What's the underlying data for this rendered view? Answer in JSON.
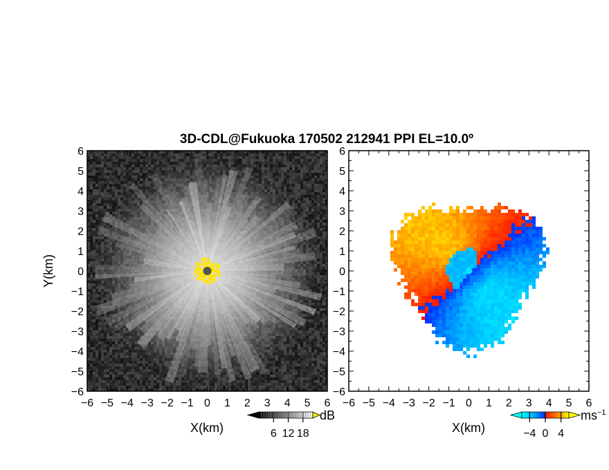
{
  "title": "3D-CDL@Fukuoka 170502 212941 PPI EL=10.0º",
  "chart_data": [
    {
      "type": "heatmap",
      "panel": "reflectivity",
      "xlabel": "X(km)",
      "ylabel": "Y(km)",
      "xlim": [
        -6,
        6
      ],
      "ylim": [
        -6,
        6
      ],
      "xticks": [
        "−6",
        "−5",
        "−4",
        "−3",
        "−2",
        "−1",
        "0",
        "1",
        "2",
        "3",
        "4",
        "5",
        "6"
      ],
      "yticks": [
        "−6",
        "−5",
        "−4",
        "−3",
        "−2",
        "−1",
        "0",
        "1",
        "2",
        "3",
        "4",
        "5",
        "6"
      ],
      "colormap": "grayscale",
      "saturation_color": "#ffe600",
      "radar_marker_color": "#555555",
      "colorbar": {
        "ticks": [
          "6",
          "12",
          "18"
        ],
        "tick_values": [
          6,
          12,
          18
        ],
        "range": [
          0,
          22
        ],
        "unit": "dB"
      }
    },
    {
      "type": "heatmap",
      "panel": "doppler_velocity",
      "xlabel": "X(km)",
      "xlim": [
        -6,
        6
      ],
      "ylim": [
        -6,
        6
      ],
      "xticks": [
        "−6",
        "−5",
        "−4",
        "−3",
        "−2",
        "−1",
        "0",
        "1",
        "2",
        "3",
        "4",
        "5",
        "6"
      ],
      "yticks": [
        "−6",
        "−5",
        "−4",
        "−3",
        "−2",
        "−1",
        "0",
        "1",
        "2",
        "3",
        "4",
        "5",
        "6"
      ],
      "colormap": "cyan-blue-red-orange-yellow",
      "radar_marker_color": "#00e5ff",
      "colorbar": {
        "ticks": [
          "−4",
          "0",
          "4"
        ],
        "tick_values": [
          -4,
          0,
          4
        ],
        "range": [
          -6,
          6
        ],
        "unit": "ms",
        "unit_exponent": "−1"
      }
    }
  ]
}
